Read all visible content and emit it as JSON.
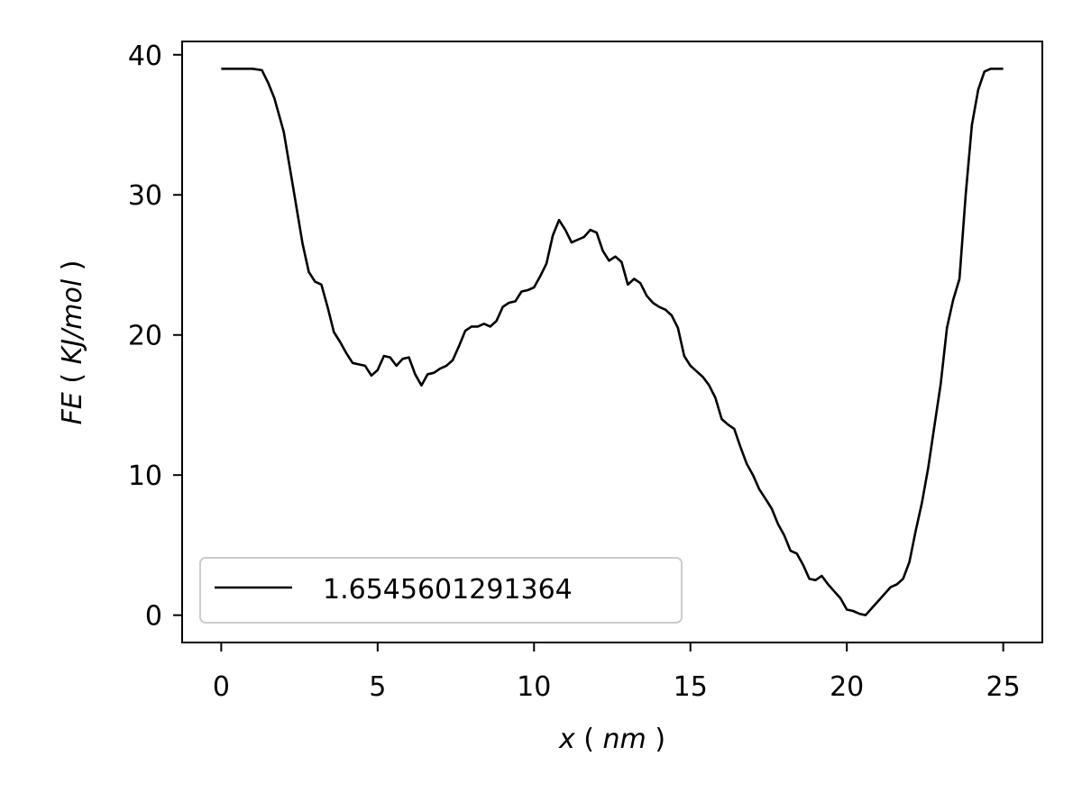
{
  "chart_data": {
    "type": "line",
    "xlabel_main": "x",
    "xlabel_unit": "nm",
    "ylabel_main": "FE",
    "ylabel_unit": "KJ/mol",
    "xlim": [
      -1.25,
      26.25
    ],
    "ylim": [
      -1.95,
      40.95
    ],
    "xticks": [
      0,
      5,
      10,
      15,
      20,
      25
    ],
    "yticks": [
      0,
      10,
      20,
      30,
      40
    ],
    "grid": false,
    "legend_position": "lower-left",
    "line_color": "#000000",
    "series": [
      {
        "name": "1.6545601291364",
        "x": [
          0,
          0.5,
          1.0,
          1.3,
          1.5,
          1.7,
          2.0,
          2.3,
          2.6,
          2.8,
          3.0,
          3.2,
          3.4,
          3.6,
          3.8,
          4.0,
          4.2,
          4.4,
          4.6,
          4.8,
          5.0,
          5.2,
          5.4,
          5.6,
          5.8,
          6.0,
          6.2,
          6.4,
          6.6,
          6.8,
          7.0,
          7.2,
          7.4,
          7.6,
          7.8,
          8.0,
          8.2,
          8.4,
          8.6,
          8.8,
          9.0,
          9.2,
          9.4,
          9.6,
          9.8,
          10.0,
          10.2,
          10.4,
          10.6,
          10.8,
          11.0,
          11.2,
          11.4,
          11.6,
          11.8,
          12.0,
          12.2,
          12.4,
          12.6,
          12.8,
          13.0,
          13.2,
          13.4,
          13.6,
          13.8,
          14.0,
          14.2,
          14.4,
          14.6,
          14.8,
          15.0,
          15.2,
          15.4,
          15.6,
          15.8,
          16.0,
          16.2,
          16.4,
          16.6,
          16.8,
          17.0,
          17.2,
          17.4,
          17.6,
          17.8,
          18.0,
          18.2,
          18.4,
          18.6,
          18.8,
          19.0,
          19.2,
          19.4,
          19.6,
          19.8,
          20.0,
          20.2,
          20.4,
          20.6,
          20.8,
          21.0,
          21.2,
          21.4,
          21.6,
          21.8,
          22.0,
          22.2,
          22.4,
          22.6,
          22.8,
          23.0,
          23.2,
          23.4,
          23.6,
          23.8,
          24.0,
          24.2,
          24.4,
          24.6,
          24.8,
          25.0
        ],
        "y": [
          39.0,
          39.0,
          39.0,
          38.9,
          38.0,
          36.9,
          34.5,
          30.5,
          26.5,
          24.5,
          23.8,
          23.6,
          22.0,
          20.2,
          19.5,
          18.7,
          18.0,
          17.9,
          17.8,
          17.1,
          17.5,
          18.5,
          18.4,
          17.8,
          18.3,
          18.4,
          17.2,
          16.4,
          17.2,
          17.3,
          17.6,
          17.8,
          18.2,
          19.2,
          20.3,
          20.6,
          20.6,
          20.8,
          20.6,
          21.0,
          22.0,
          22.3,
          22.4,
          23.1,
          23.2,
          23.4,
          24.2,
          25.1,
          27.1,
          28.2,
          27.5,
          26.6,
          26.8,
          27.0,
          27.5,
          27.3,
          26.0,
          25.3,
          25.6,
          25.2,
          23.6,
          24.0,
          23.7,
          22.8,
          22.3,
          22.0,
          21.8,
          21.4,
          20.5,
          18.5,
          17.8,
          17.4,
          17.0,
          16.4,
          15.5,
          14.0,
          13.6,
          13.3,
          12.0,
          10.8,
          10.0,
          9.0,
          8.3,
          7.6,
          6.5,
          5.7,
          4.6,
          4.4,
          3.6,
          2.6,
          2.5,
          2.8,
          2.2,
          1.7,
          1.2,
          0.4,
          0.3,
          0.1,
          0.0,
          0.5,
          1.0,
          1.5,
          2.0,
          2.2,
          2.6,
          3.8,
          6.0,
          8.0,
          10.5,
          13.5,
          16.5,
          20.5,
          22.5,
          24.0,
          30.0,
          35.0,
          37.5,
          38.8,
          39.0,
          39.0,
          39.0
        ]
      }
    ]
  }
}
